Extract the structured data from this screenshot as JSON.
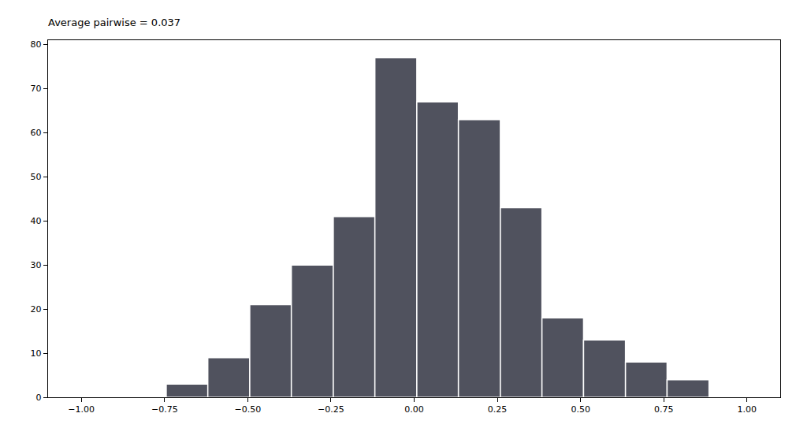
{
  "chart_data": {
    "type": "histogram",
    "title": "Average pairwise = 0.037",
    "bins": [
      -0.745,
      -0.62,
      -0.494,
      -0.369,
      -0.243,
      -0.118,
      0.008,
      0.133,
      0.259,
      0.384,
      0.509,
      0.635,
      0.76,
      0.886
    ],
    "values": [
      3,
      9,
      21,
      30,
      41,
      77,
      67,
      63,
      43,
      18,
      13,
      8,
      4
    ],
    "color": "#50525e",
    "xlim": [
      -1.1,
      1.1
    ],
    "xticks": [
      {
        "value": -1,
        "label": "−1.00"
      },
      {
        "value": -0.75,
        "label": "−0.75"
      },
      {
        "value": -0.5,
        "label": "−0.50"
      },
      {
        "value": -0.25,
        "label": "−0.25"
      },
      {
        "value": 0,
        "label": "0.00"
      },
      {
        "value": 0.25,
        "label": "0.25"
      },
      {
        "value": 0.5,
        "label": "0.50"
      },
      {
        "value": 0.75,
        "label": "0.75"
      },
      {
        "value": 1,
        "label": "1.00"
      }
    ],
    "ylim": [
      0,
      81
    ],
    "yticks": [
      0,
      10,
      20,
      30,
      40,
      50,
      60,
      70,
      80
    ],
    "grid": false
  }
}
